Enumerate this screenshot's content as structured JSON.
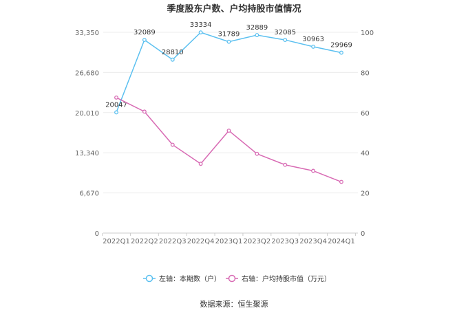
{
  "chart_data": {
    "type": "line",
    "title": "季度股东户数、户均持股市值情况",
    "categories": [
      "2022Q1",
      "2022Q2",
      "2022Q3",
      "2022Q4",
      "2023Q1",
      "2023Q2",
      "2023Q3",
      "2023Q4",
      "2024Q1"
    ],
    "left_axis": {
      "ylim": [
        0,
        33350
      ],
      "ticks": [
        "0",
        "6,670",
        "13,340",
        "20,010",
        "26,680",
        "33,350"
      ],
      "tick_values": [
        0,
        6670,
        13340,
        20010,
        26680,
        33350
      ]
    },
    "right_axis": {
      "ylim": [
        0,
        100
      ],
      "ticks": [
        "0",
        "20",
        "40",
        "60",
        "80",
        "100"
      ],
      "tick_values": [
        0,
        20,
        40,
        60,
        80,
        100
      ]
    },
    "series": [
      {
        "name": "左轴：本期数（户）",
        "axis": "left",
        "color": "#5bc0f0",
        "values": [
          20047,
          32089,
          28810,
          33334,
          31789,
          32889,
          32085,
          30963,
          29969
        ],
        "labels": [
          "20047",
          "32089",
          "28810",
          "33334",
          "31789",
          "32889",
          "32085",
          "30963",
          "29969"
        ]
      },
      {
        "name": "右轴：户均持股市值（万元）",
        "axis": "right",
        "color": "#d86bb4",
        "values": [
          67.5,
          60.5,
          44.0,
          34.5,
          51.0,
          39.5,
          34.0,
          31.0,
          25.5
        ]
      }
    ],
    "grid": true,
    "legend_position": "bottom",
    "source": "数据来源：恒生聚源"
  }
}
